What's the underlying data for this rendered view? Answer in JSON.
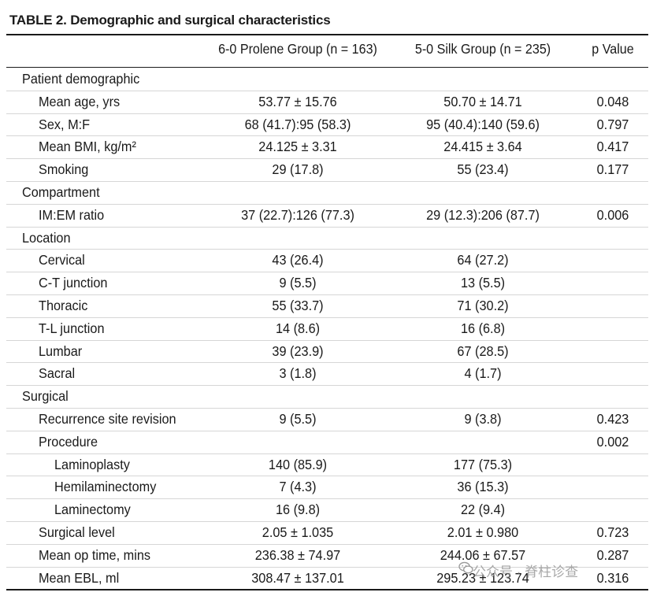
{
  "table": {
    "title": "TABLE 2. Demographic and surgical characteristics",
    "columns": [
      "",
      "6-0 Prolene Group (n = 163)",
      "5-0 Silk Group (n = 235)",
      "p Value"
    ],
    "rows": [
      {
        "label": "Patient demographic",
        "level": 0,
        "prolene": "",
        "silk": "",
        "p": ""
      },
      {
        "label": "Mean age, yrs",
        "level": 1,
        "prolene": "53.77 ± 15.76",
        "silk": "50.70 ± 14.71",
        "p": "0.048"
      },
      {
        "label": "Sex, M:F",
        "level": 1,
        "prolene": "68 (41.7):95 (58.3)",
        "silk": "95 (40.4):140 (59.6)",
        "p": "0.797"
      },
      {
        "label": "Mean BMI, kg/m²",
        "level": 1,
        "prolene": "24.125 ± 3.31",
        "silk": "24.415 ± 3.64",
        "p": "0.417"
      },
      {
        "label": "Smoking",
        "level": 1,
        "prolene": "29 (17.8)",
        "silk": "55 (23.4)",
        "p": "0.177"
      },
      {
        "label": "Compartment",
        "level": 0,
        "prolene": "",
        "silk": "",
        "p": ""
      },
      {
        "label": "IM:EM ratio",
        "level": 1,
        "prolene": "37 (22.7):126 (77.3)",
        "silk": "29 (12.3):206 (87.7)",
        "p": "0.006"
      },
      {
        "label": "Location",
        "level": 0,
        "prolene": "",
        "silk": "",
        "p": ""
      },
      {
        "label": "Cervical",
        "level": 1,
        "prolene": "43 (26.4)",
        "silk": "64 (27.2)",
        "p": ""
      },
      {
        "label": "C-T junction",
        "level": 1,
        "prolene": "9 (5.5)",
        "silk": "13 (5.5)",
        "p": ""
      },
      {
        "label": "Thoracic",
        "level": 1,
        "prolene": "55 (33.7)",
        "silk": "71 (30.2)",
        "p": ""
      },
      {
        "label": "T-L junction",
        "level": 1,
        "prolene": "14 (8.6)",
        "silk": "16 (6.8)",
        "p": ""
      },
      {
        "label": "Lumbar",
        "level": 1,
        "prolene": "39 (23.9)",
        "silk": "67 (28.5)",
        "p": ""
      },
      {
        "label": "Sacral",
        "level": 1,
        "prolene": "3 (1.8)",
        "silk": "4 (1.7)",
        "p": ""
      },
      {
        "label": "Surgical",
        "level": 0,
        "prolene": "",
        "silk": "",
        "p": ""
      },
      {
        "label": "Recurrence site revision",
        "level": 1,
        "prolene": "9 (5.5)",
        "silk": "9 (3.8)",
        "p": "0.423"
      },
      {
        "label": "Procedure",
        "level": 1,
        "prolene": "",
        "silk": "",
        "p": "0.002"
      },
      {
        "label": "Laminoplasty",
        "level": 2,
        "prolene": "140 (85.9)",
        "silk": "177 (75.3)",
        "p": ""
      },
      {
        "label": "Hemilaminectomy",
        "level": 2,
        "prolene": "7 (4.3)",
        "silk": "36 (15.3)",
        "p": ""
      },
      {
        "label": "Laminectomy",
        "level": 2,
        "prolene": "16 (9.8)",
        "silk": "22 (9.4)",
        "p": ""
      },
      {
        "label": "Surgical level",
        "level": 1,
        "prolene": "2.05 ± 1.035",
        "silk": "2.01 ± 0.980",
        "p": "0.723"
      },
      {
        "label": "Mean op time, mins",
        "level": 1,
        "prolene": "236.38 ± 74.97",
        "silk": "244.06 ± 67.57",
        "p": "0.287"
      },
      {
        "label": "Mean EBL, ml",
        "level": 1,
        "prolene": "308.47 ± 137.01",
        "silk": "295.23 ± 123.74",
        "p": "0.316"
      }
    ]
  },
  "watermark": {
    "text": "公众号 · 脊柱诊查",
    "icon": "wechat-icon"
  }
}
